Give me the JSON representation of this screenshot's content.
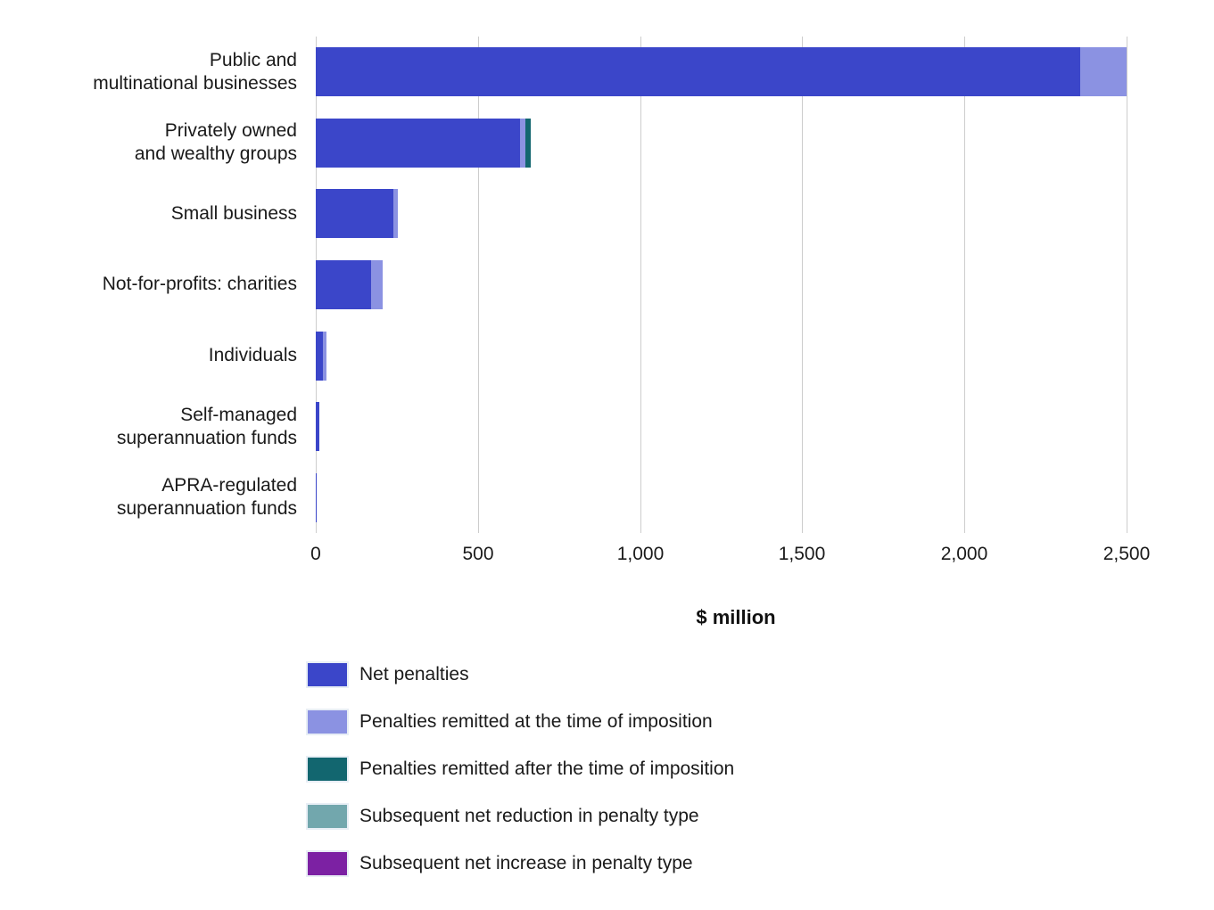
{
  "chart_data": {
    "type": "bar",
    "orientation": "horizontal",
    "stacked": true,
    "title": "",
    "xlabel": "$ million",
    "ylabel": "",
    "xlim": [
      0,
      2500
    ],
    "grid": true,
    "legend_position": "bottom-left",
    "xticks": [
      {
        "value": 0,
        "label": "0"
      },
      {
        "value": 500,
        "label": "500"
      },
      {
        "value": 1000,
        "label": "1,000"
      },
      {
        "value": 1500,
        "label": "1,500"
      },
      {
        "value": 2000,
        "label": "2,000"
      },
      {
        "value": 2500,
        "label": "2,500"
      }
    ],
    "categories": [
      "Public and\nmultinational businesses",
      "Privately owned\nand wealthy groups",
      "Small business",
      "Not-for-profits: charities",
      "Individuals",
      "Self-managed\nsuperannuation funds",
      "APRA-regulated\nsuperannuation funds"
    ],
    "series": [
      {
        "name": "Net penalties",
        "color": "#3b46c9",
        "values": [
          2357,
          630,
          239,
          171,
          23,
          11,
          3
        ]
      },
      {
        "name": "Penalties remitted at the time of imposition",
        "color": "#8b92e2",
        "values": [
          143,
          17,
          15,
          36,
          9,
          0,
          0
        ]
      },
      {
        "name": "Penalties remitted after the time of imposition",
        "color": "#12666f",
        "values": [
          0,
          15,
          0,
          0,
          0,
          0,
          0
        ]
      },
      {
        "name": "Subsequent net reduction in penalty type",
        "color": "#72a7ad",
        "values": [
          0,
          0,
          0,
          0,
          0,
          0,
          0
        ]
      },
      {
        "name": "Subsequent net increase in penalty type",
        "color": "#7c21a3",
        "values": [
          0,
          0,
          0,
          0,
          0,
          0,
          0
        ]
      }
    ],
    "colors": {
      "gridline": "#cdcdcd",
      "text": "#1a1a1a",
      "background": "#ffffff"
    }
  }
}
